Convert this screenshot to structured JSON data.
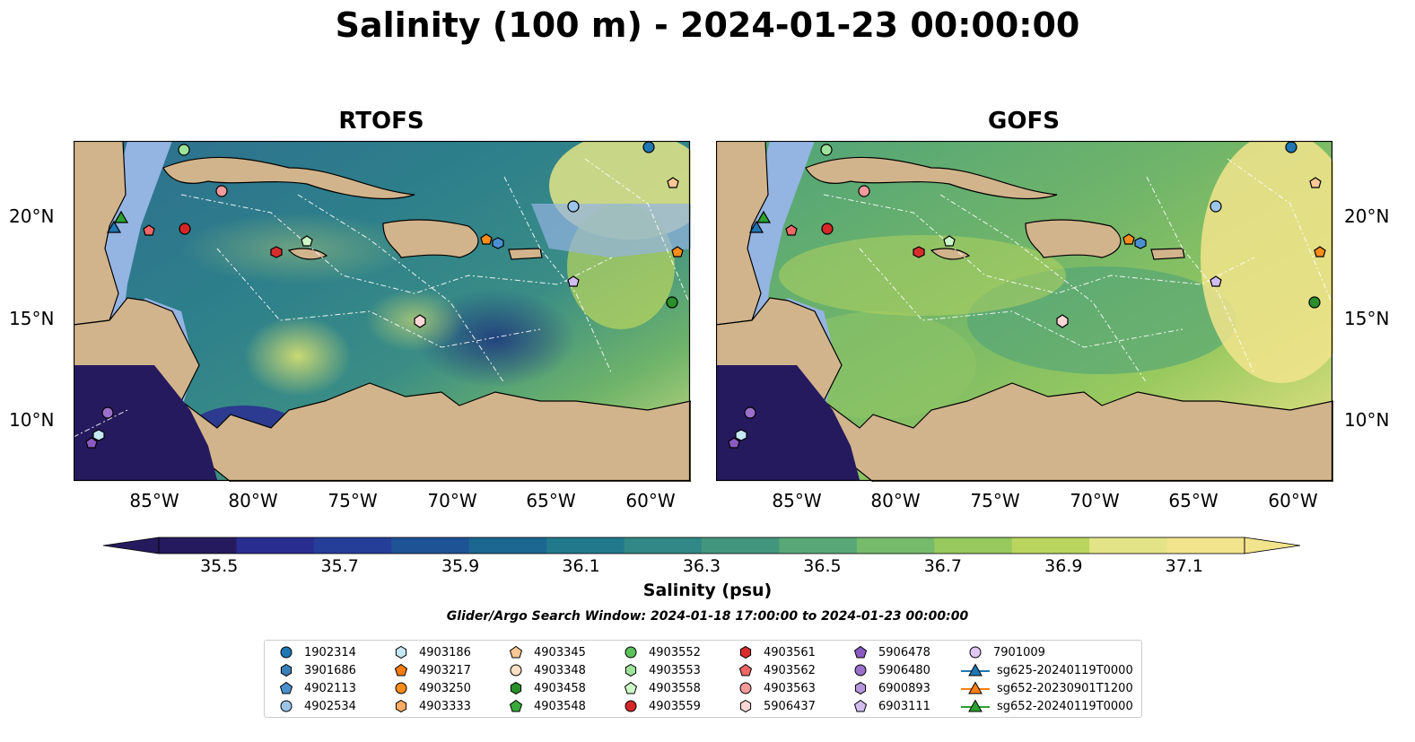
{
  "title": "Salinity (100 m) - 2024-01-23 00:00:00",
  "panels": [
    {
      "title": "RTOFS"
    },
    {
      "title": "GOFS"
    }
  ],
  "axes": {
    "x_ticks": [
      "85°W",
      "80°W",
      "75°W",
      "70°W",
      "65°W",
      "60°W"
    ],
    "y_ticks": [
      "20°N",
      "15°N",
      "10°N"
    ]
  },
  "colorbar": {
    "label": "Salinity (psu)",
    "ticks": [
      "35.5",
      "35.7",
      "35.9",
      "36.1",
      "36.3",
      "36.5",
      "36.7",
      "36.9",
      "37.1"
    ],
    "range": [
      35.4,
      37.2
    ],
    "colors": [
      "#261a5e",
      "#2a2d90",
      "#253f98",
      "#1e5496",
      "#1b6791",
      "#22798c",
      "#318886",
      "#43967e",
      "#58a877",
      "#76bb6b",
      "#97c95e",
      "#bad55e",
      "#e3e487",
      "#f2e48c"
    ]
  },
  "search_window": "Glider/Argo Search Window: 2024-01-18 17:00:00 to 2024-01-23 00:00:00",
  "map_colors": {
    "land": "#d2b48c",
    "shelf": "#94b4e2",
    "ocean_fill": "#3d8c88"
  },
  "legend": [
    [
      {
        "label": "1902314",
        "marker": "circle",
        "color": "#1f77b4"
      },
      {
        "label": "3901686",
        "marker": "hexagon",
        "color": "#3b7fb8"
      },
      {
        "label": "4902113",
        "marker": "pentagon",
        "color": "#4a90d0"
      },
      {
        "label": "4902534",
        "marker": "circle",
        "color": "#9cc5ea"
      }
    ],
    [
      {
        "label": "4903186",
        "marker": "hexagon",
        "color": "#c6e9f5"
      },
      {
        "label": "4903217",
        "marker": "pentagon",
        "color": "#f57c12"
      },
      {
        "label": "4903250",
        "marker": "circle",
        "color": "#ff8c1a"
      },
      {
        "label": "4903333",
        "marker": "hexagon",
        "color": "#ffab64"
      }
    ],
    [
      {
        "label": "4903345",
        "marker": "pentagon",
        "color": "#fdc896"
      },
      {
        "label": "4903348",
        "marker": "circle",
        "color": "#fde0c2"
      },
      {
        "label": "4903458",
        "marker": "hexagon",
        "color": "#2a8f2a"
      },
      {
        "label": "4903548",
        "marker": "pentagon",
        "color": "#3aa83a"
      }
    ],
    [
      {
        "label": "4903552",
        "marker": "circle",
        "color": "#5cc05c"
      },
      {
        "label": "4903553",
        "marker": "hexagon",
        "color": "#9ee39a"
      },
      {
        "label": "4903558",
        "marker": "pentagon",
        "color": "#cdf7c6"
      },
      {
        "label": "4903559",
        "marker": "circle",
        "color": "#d62728"
      }
    ],
    [
      {
        "label": "4903561",
        "marker": "hexagon",
        "color": "#d92d2d"
      },
      {
        "label": "4903562",
        "marker": "pentagon",
        "color": "#f06666"
      },
      {
        "label": "4903563",
        "marker": "circle",
        "color": "#f49a9a"
      },
      {
        "label": "5906437",
        "marker": "hexagon",
        "color": "#fcd6d6"
      }
    ],
    [
      {
        "label": "5906478",
        "marker": "pentagon",
        "color": "#8a5ac2"
      },
      {
        "label": "5906480",
        "marker": "circle",
        "color": "#9b6fcc"
      },
      {
        "label": "6900893",
        "marker": "hexagon",
        "color": "#b496dc"
      },
      {
        "label": "6903111",
        "marker": "pentagon",
        "color": "#d2bdf0"
      }
    ],
    [
      {
        "label": "7901009",
        "marker": "circle",
        "color": "#e0c8f5"
      },
      {
        "label": "sg625-20240119T0000",
        "marker": "triangle-line",
        "color": "#1f77b4"
      },
      {
        "label": "sg652-20230901T1200",
        "marker": "triangle-line",
        "color": "#ff7f0e"
      },
      {
        "label": "sg652-20240119T0000",
        "marker": "triangle-line",
        "color": "#2ca02c"
      }
    ]
  ]
}
